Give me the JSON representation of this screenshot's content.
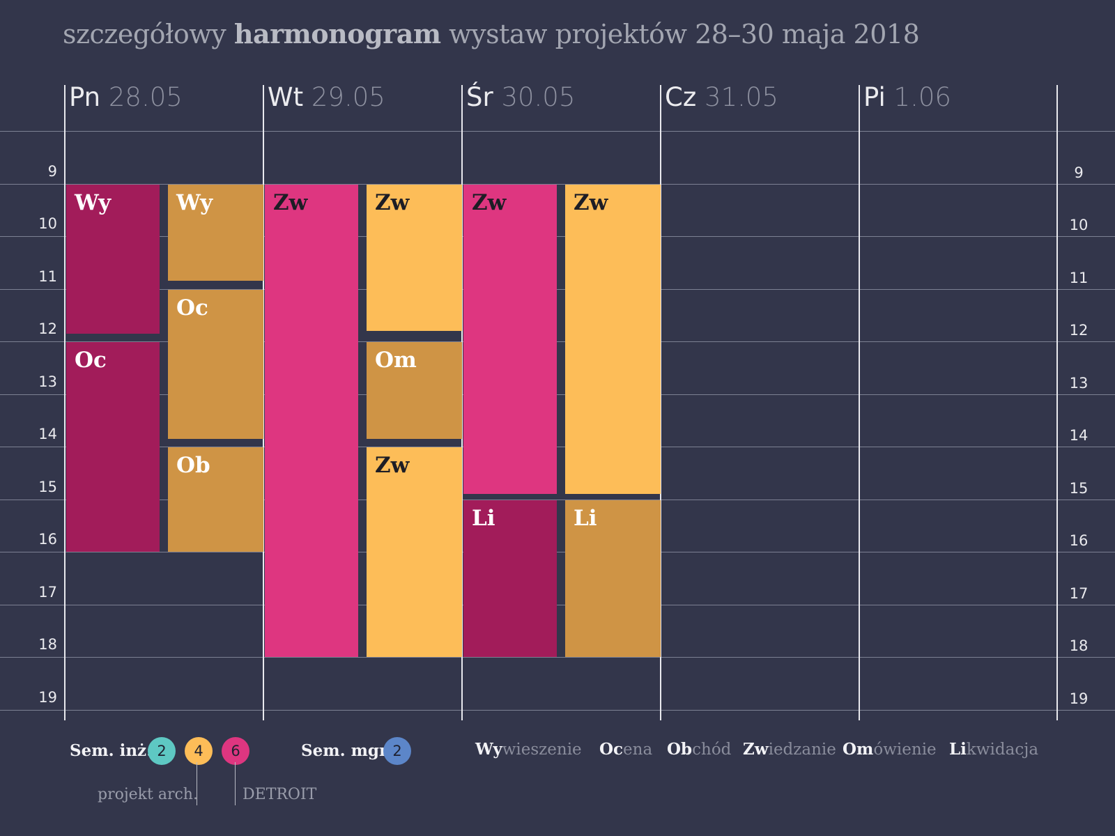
{
  "title": {
    "prefix": "szczegółowy",
    "bold": "harmonogram",
    "suffix": "wystaw projektów 28–30 maja 2018"
  },
  "days": [
    {
      "name": "Pn",
      "date": "28.05"
    },
    {
      "name": "Wt",
      "date": "29.05"
    },
    {
      "name": "Śr",
      "date": "30.05"
    },
    {
      "name": "Cz",
      "date": "31.05"
    },
    {
      "name": "Pi",
      "date": "1.06"
    }
  ],
  "hours": [
    "9",
    "10",
    "11",
    "12",
    "13",
    "14",
    "15",
    "16",
    "17",
    "18",
    "19"
  ],
  "colors": {
    "background": "#33364b",
    "sem6_dark": "#a21c5a",
    "sem4_dark": "#cf9445",
    "sem6_pink": "#de3680",
    "sem4_yellow": "#fdbd58",
    "inz2_teal": "#5ec8c3",
    "mgr2_blue": "#5c86c9"
  },
  "events": [
    {
      "day": 0,
      "lane": 0,
      "start": 9.5,
      "end": 12.35,
      "label": "Wy",
      "color": "#a21c5a",
      "text": "#ffffff"
    },
    {
      "day": 0,
      "lane": 1,
      "start": 9.5,
      "end": 11.35,
      "label": "Wy",
      "color": "#cf9445",
      "text": "#ffffff"
    },
    {
      "day": 0,
      "lane": 1,
      "start": 11.5,
      "end": 14.35,
      "label": "Oc",
      "color": "#cf9445",
      "text": "#ffffff"
    },
    {
      "day": 0,
      "lane": 0,
      "start": 12.5,
      "end": 16.5,
      "label": "Oc",
      "color": "#a21c5a",
      "text": "#ffffff"
    },
    {
      "day": 0,
      "lane": 1,
      "start": 14.5,
      "end": 16.5,
      "label": "Ob",
      "color": "#cf9445",
      "text": "#ffffff"
    },
    {
      "day": 1,
      "lane": 0,
      "start": 9.5,
      "end": 18.5,
      "label": "Zw",
      "color": "#de3680",
      "text": "#1d1d25"
    },
    {
      "day": 1,
      "lane": 1,
      "start": 9.5,
      "end": 12.3,
      "label": "Zw",
      "color": "#fdbd58",
      "text": "#1d1d25"
    },
    {
      "day": 1,
      "lane": 1,
      "start": 12.5,
      "end": 14.35,
      "label": "Om",
      "color": "#cf9445",
      "text": "#ffffff"
    },
    {
      "day": 1,
      "lane": 1,
      "start": 14.5,
      "end": 18.5,
      "label": "Zw",
      "color": "#fdbd58",
      "text": "#1d1d25"
    },
    {
      "day": 2,
      "lane": 0,
      "start": 9.5,
      "end": 15.4,
      "label": "Zw",
      "color": "#de3680",
      "text": "#1d1d25"
    },
    {
      "day": 2,
      "lane": 1,
      "start": 9.5,
      "end": 15.4,
      "label": "Zw",
      "color": "#fdbd58",
      "text": "#1d1d25"
    },
    {
      "day": 2,
      "lane": 0,
      "start": 15.5,
      "end": 18.5,
      "label": "Li",
      "color": "#a21c5a",
      "text": "#ffffff"
    },
    {
      "day": 2,
      "lane": 1,
      "start": 15.5,
      "end": 18.5,
      "label": "Li",
      "color": "#cf9445",
      "text": "#ffffff"
    }
  ],
  "legend": {
    "inz_label": "Sem. inż:",
    "inz_values": [
      {
        "value": "2",
        "color": "#5ec8c3"
      },
      {
        "value": "4",
        "color": "#fdbd58"
      },
      {
        "value": "6",
        "color": "#de3680"
      }
    ],
    "mgr_label": "Sem. mgr:",
    "mgr_value": {
      "value": "2",
      "color": "#5c86c9"
    },
    "note_left": "projekt arch.",
    "note_right": "DETROIT",
    "activities": [
      {
        "abbr": "Wy",
        "rest": "wieszenie"
      },
      {
        "abbr": "Oc",
        "rest": "ena"
      },
      {
        "abbr": "Ob",
        "rest": "chód"
      },
      {
        "abbr": "Zw",
        "rest": "iedzanie"
      },
      {
        "abbr": "Om",
        "rest": "ówienie"
      },
      {
        "abbr": "Li",
        "rest": "kwidacja"
      }
    ]
  }
}
